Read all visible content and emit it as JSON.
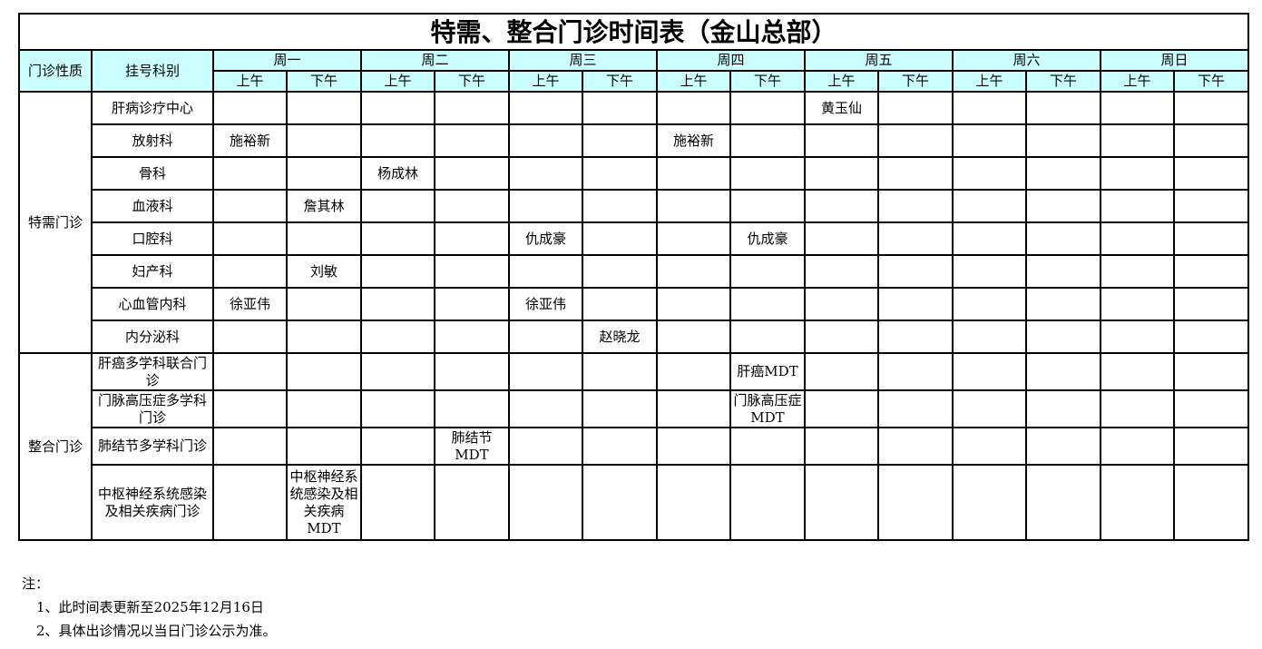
{
  "title": "特需、整合门诊时间表（金山总部）",
  "header": {
    "type_col": "门诊性质",
    "dept_col": "挂号科别",
    "days": [
      "周一",
      "周二",
      "周三",
      "周四",
      "周五",
      "周六",
      "周日"
    ],
    "am": "上午",
    "pm": "下午"
  },
  "groups": [
    {
      "name": "特需门诊",
      "rows": [
        {
          "dept": "肝病诊疗中心",
          "cells": [
            "",
            "",
            "",
            "",
            "",
            "",
            "",
            "",
            "黄玉仙",
            "",
            "",
            "",
            "",
            ""
          ]
        },
        {
          "dept": "放射科",
          "cells": [
            "施裕新",
            "",
            "",
            "",
            "",
            "",
            "施裕新",
            "",
            "",
            "",
            "",
            "",
            "",
            ""
          ]
        },
        {
          "dept": "骨科",
          "cells": [
            "",
            "",
            "杨成林",
            "",
            "",
            "",
            "",
            "",
            "",
            "",
            "",
            "",
            "",
            ""
          ]
        },
        {
          "dept": "血液科",
          "cells": [
            "",
            "詹其林",
            "",
            "",
            "",
            "",
            "",
            "",
            "",
            "",
            "",
            "",
            "",
            ""
          ]
        },
        {
          "dept": "口腔科",
          "cells": [
            "",
            "",
            "",
            "",
            "仇成豪",
            "",
            "",
            "仇成豪",
            "",
            "",
            "",
            "",
            "",
            ""
          ]
        },
        {
          "dept": "妇产科",
          "cells": [
            "",
            "刘敏",
            "",
            "",
            "",
            "",
            "",
            "",
            "",
            "",
            "",
            "",
            "",
            ""
          ]
        },
        {
          "dept": "心血管内科",
          "cells": [
            "徐亚伟",
            "",
            "",
            "",
            "徐亚伟",
            "",
            "",
            "",
            "",
            "",
            "",
            "",
            "",
            ""
          ]
        },
        {
          "dept": "内分泌科",
          "cells": [
            "",
            "",
            "",
            "",
            "",
            "赵晓龙",
            "",
            "",
            "",
            "",
            "",
            "",
            "",
            ""
          ]
        }
      ]
    },
    {
      "name": "整合门诊",
      "rows": [
        {
          "dept": "肝癌多学科联合门诊",
          "cells": [
            "",
            "",
            "",
            "",
            "",
            "",
            "",
            "肝癌MDT",
            "",
            "",
            "",
            "",
            "",
            ""
          ]
        },
        {
          "dept": "门脉高压症多学科门诊",
          "cells": [
            "",
            "",
            "",
            "",
            "",
            "",
            "",
            "门脉高压症MDT",
            "",
            "",
            "",
            "",
            "",
            ""
          ]
        },
        {
          "dept": "肺结节多学科门诊",
          "cells": [
            "",
            "",
            "",
            "肺结节MDT",
            "",
            "",
            "",
            "",
            "",
            "",
            "",
            "",
            "",
            ""
          ]
        },
        {
          "dept": "中枢神经系统感染及相关疾病门诊",
          "cells": [
            "",
            "中枢神经系统感染及相关疾病MDT",
            "",
            "",
            "",
            "",
            "",
            "",
            "",
            "",
            "",
            "",
            "",
            ""
          ]
        }
      ]
    }
  ],
  "notes": {
    "label": "注：",
    "items": [
      "1、此时间表更新至2025年12月16日",
      "2、具体出诊情况以当日门诊公示为准。"
    ]
  }
}
